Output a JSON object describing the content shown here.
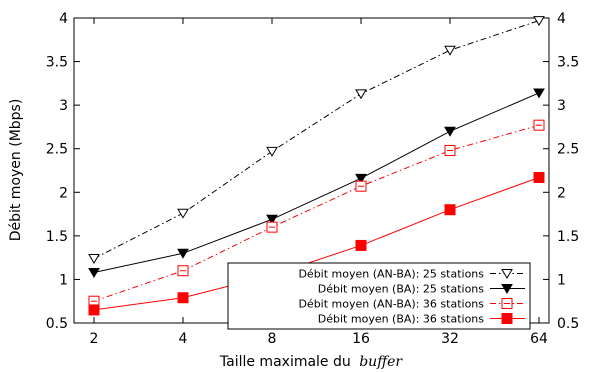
{
  "chart_data": {
    "type": "line",
    "title": "",
    "xlabel": "Taille maximale du",
    "xlabel_italic": "buffer",
    "ylabel": "Débit moyen (Mbps)",
    "x": [
      2,
      4,
      8,
      16,
      32,
      64
    ],
    "x_ticks": [
      "2",
      "4",
      "8",
      "16",
      "32",
      "64"
    ],
    "y_ticks": [
      "0.5",
      "1",
      "1.5",
      "2",
      "2.5",
      "3",
      "3.5",
      "4"
    ],
    "y_ticks_right": [
      "0.5",
      "1",
      "1.5",
      "2",
      "2.5",
      "3",
      "3.5",
      "4"
    ],
    "ylim": [
      0.5,
      4
    ],
    "x_scale": "log2",
    "grid": false,
    "legend_position": "bottom-right",
    "series": [
      {
        "name": "Débit moyen (AN-BA): 25 stations",
        "values": [
          1.24,
          1.76,
          2.47,
          3.13,
          3.63,
          3.97
        ],
        "color": "#000000",
        "line_style": "dash-dot",
        "marker": "triangle-down-open"
      },
      {
        "name": "Débit moyen (BA): 25 stations",
        "values": [
          1.08,
          1.3,
          1.69,
          2.16,
          2.7,
          3.14
        ],
        "color": "#000000",
        "line_style": "solid",
        "marker": "triangle-down-filled"
      },
      {
        "name": "Débit moyen (AN-BA): 36 stations",
        "values": [
          0.75,
          1.1,
          1.6,
          2.07,
          2.48,
          2.77
        ],
        "color": "#ff0000",
        "line_style": "dash-dot",
        "marker": "square-open"
      },
      {
        "name": "Débit moyen (BA): 36 stations",
        "values": [
          0.65,
          0.79,
          1.05,
          1.39,
          1.8,
          2.17
        ],
        "color": "#ff0000",
        "line_style": "solid",
        "marker": "square-filled"
      }
    ]
  }
}
